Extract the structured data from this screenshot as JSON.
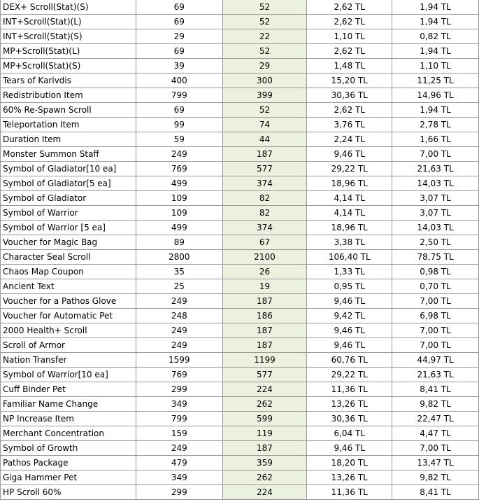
{
  "table": {
    "highlight_column_color": "#ebf1de",
    "rows": [
      [
        "DEX+ Scroll(Stat)(S)",
        "69",
        "52",
        "2,62 TL",
        "1,94 TL"
      ],
      [
        "INT+Scroll(Stat)(L)",
        "69",
        "52",
        "2,62 TL",
        "1,94 TL"
      ],
      [
        "INT+Scroll(Stat)(S)",
        "29",
        "22",
        "1,10 TL",
        "0,82 TL"
      ],
      [
        "MP+Scroll(Stat)(L)",
        "69",
        "52",
        "2,62 TL",
        "1,94 TL"
      ],
      [
        "MP+Scroll(Stat)(S)",
        "39",
        "29",
        "1,48 TL",
        "1,10 TL"
      ],
      [
        "Tears of Karivdis",
        "400",
        "300",
        "15,20 TL",
        "11,25 TL"
      ],
      [
        "Redistribution Item",
        "799",
        "399",
        "30,36 TL",
        "14,96 TL"
      ],
      [
        "60% Re-Spawn Scroll",
        "69",
        "52",
        "2,62 TL",
        "1,94 TL"
      ],
      [
        "Teleportation Item",
        "99",
        "74",
        "3,76 TL",
        "2,78 TL"
      ],
      [
        "Duration Item",
        "59",
        "44",
        "2,24 TL",
        "1,66 TL"
      ],
      [
        "Monster Summon Staff",
        "249",
        "187",
        "9,46 TL",
        "7,00 TL"
      ],
      [
        "Symbol of Gladiator[10 ea]",
        "769",
        "577",
        "29,22 TL",
        "21,63 TL"
      ],
      [
        "Symbol of Gladiator[5 ea]",
        "499",
        "374",
        "18,96 TL",
        "14,03 TL"
      ],
      [
        "Symbol of Gladiator",
        "109",
        "82",
        "4,14 TL",
        "3,07 TL"
      ],
      [
        "Symbol of Warrior",
        "109",
        "82",
        "4,14 TL",
        "3,07 TL"
      ],
      [
        "Symbol of Warrior [5 ea]",
        "499",
        "374",
        "18,96 TL",
        "14,03 TL"
      ],
      [
        "Voucher for Magic Bag",
        "89",
        "67",
        "3,38 TL",
        "2,50 TL"
      ],
      [
        "Character Seal Scroll",
        "2800",
        "2100",
        "106,40 TL",
        "78,75 TL"
      ],
      [
        "Chaos Map Coupon",
        "35",
        "26",
        "1,33 TL",
        "0,98 TL"
      ],
      [
        "Ancient Text",
        "25",
        "19",
        "0,95 TL",
        "0,70 TL"
      ],
      [
        "Voucher for a Pathos Glove",
        "249",
        "187",
        "9,46 TL",
        "7,00 TL"
      ],
      [
        "Voucher for Automatic Pet",
        "248",
        "186",
        "9,42 TL",
        "6,98 TL"
      ],
      [
        "2000 Health+ Scroll",
        "249",
        "187",
        "9,46 TL",
        "7,00 TL"
      ],
      [
        "Scroll of Armor",
        "249",
        "187",
        "9,46 TL",
        "7,00 TL"
      ],
      [
        "Nation Transfer",
        "1599",
        "1199",
        "60,76 TL",
        "44,97 TL"
      ],
      [
        "Symbol of Warrior[10 ea]",
        "769",
        "577",
        "29,22 TL",
        "21,63 TL"
      ],
      [
        "Cuff Binder Pet",
        "299",
        "224",
        "11,36 TL",
        "8,41 TL"
      ],
      [
        "Familiar Name Change",
        "349",
        "262",
        "13,26 TL",
        "9,82 TL"
      ],
      [
        "NP Increase Item",
        "799",
        "599",
        "30,36 TL",
        "22,47 TL"
      ],
      [
        "Merchant Concentration",
        "159",
        "119",
        "6,04 TL",
        "4,47 TL"
      ],
      [
        "Symbol of Growth",
        "249",
        "187",
        "9,46 TL",
        "7,00 TL"
      ],
      [
        "Pathos Package",
        "479",
        "359",
        "18,20 TL",
        "13,47 TL"
      ],
      [
        "Giga Hammer Pet",
        "349",
        "262",
        "13,26 TL",
        "9,82 TL"
      ],
      [
        "HP Scroll 60%",
        "299",
        "224",
        "11,36 TL",
        "8,41 TL"
      ]
    ]
  }
}
